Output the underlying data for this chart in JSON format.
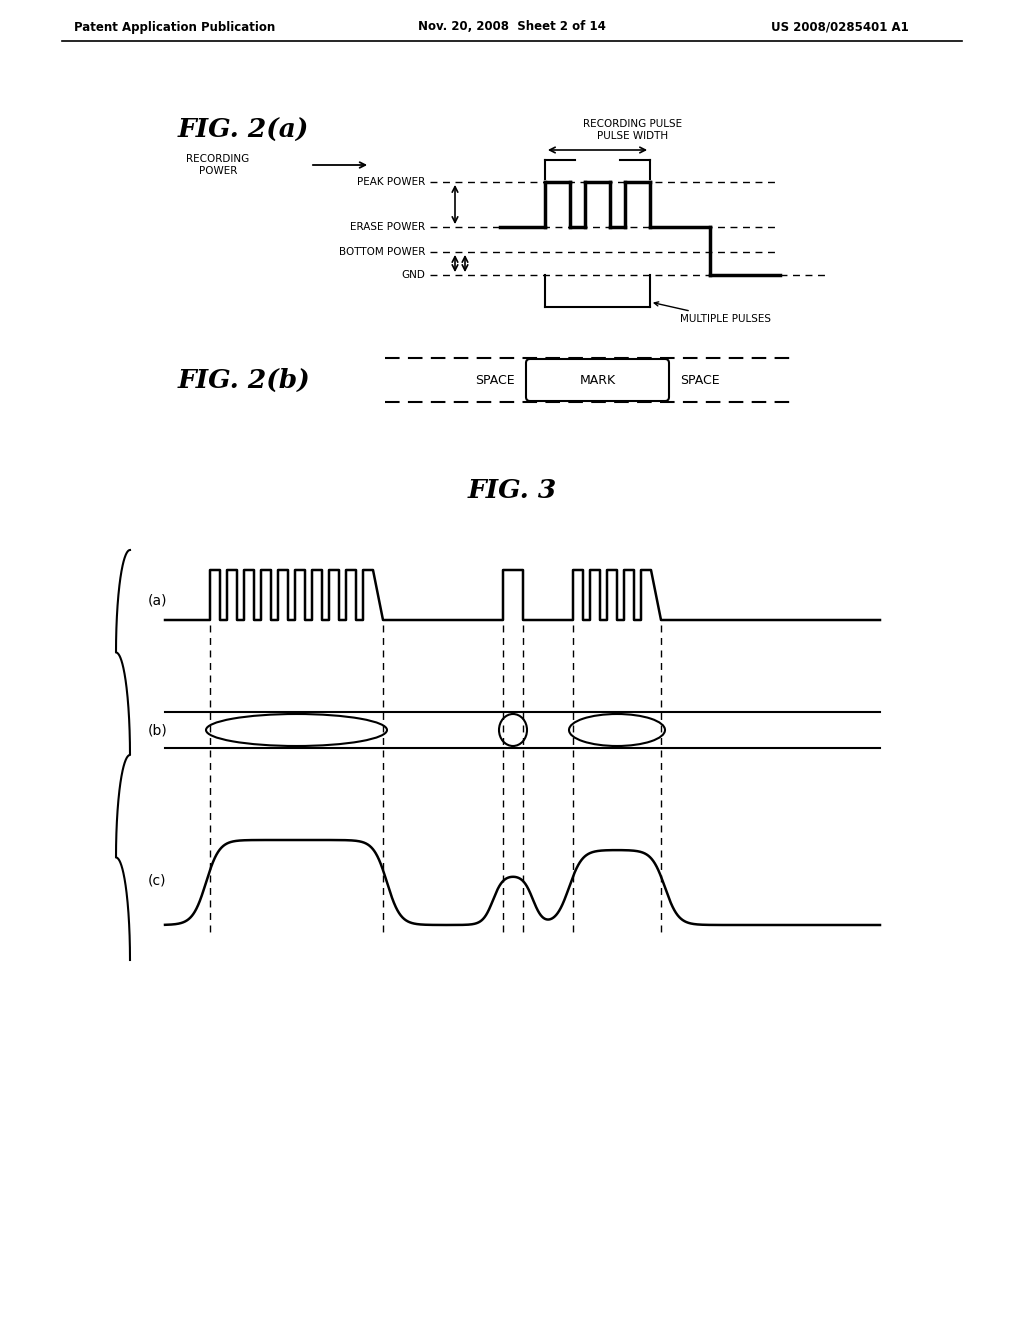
{
  "bg_color": "#ffffff",
  "header_left": "Patent Application Publication",
  "header_mid": "Nov. 20, 2008  Sheet 2 of 14",
  "header_right": "US 2008/0285401 A1"
}
